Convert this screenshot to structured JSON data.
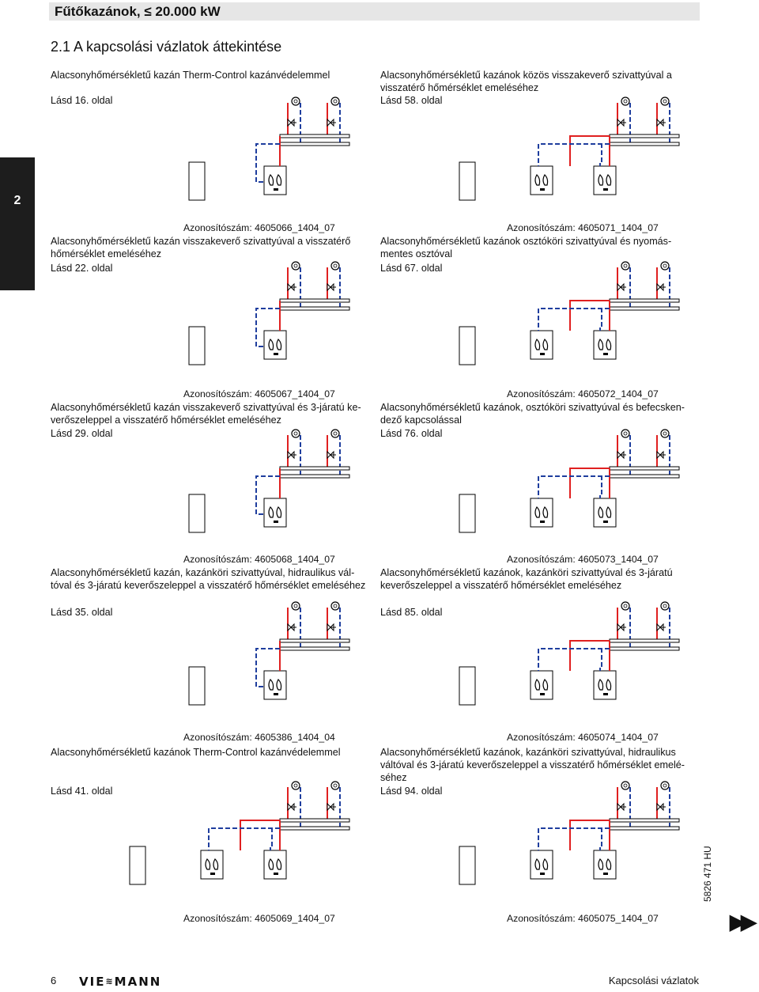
{
  "header": {
    "title": "Fűtőkazánok, ≤ 20.000 kW"
  },
  "section": {
    "title": "2.1 A kapcsolási vázlatok áttekintése"
  },
  "side_tab": {
    "label": "2"
  },
  "panels": [
    {
      "description": "Alacsonyhőmérsékletű kazán Therm-Control kazánvédelemmel",
      "see": "Lásd  16. oldal",
      "id": "Azonosítószám: 4605066_1404_07"
    },
    {
      "description": "Alacsonyhőmérsékletű kazánok közös visszakeverő szivattyúval a visszatérő hőmérséklet emeléséhez",
      "see": "Lásd  58. oldal",
      "id": "Azonosítószám: 4605071_1404_07"
    },
    {
      "description": "Alacsonyhőmérsékletű kazán visszakeverő szivattyúval a visszatérő hőmérséklet emeléséhez",
      "see": "Lásd  22. oldal",
      "id": "Azonosítószám: 4605067_1404_07"
    },
    {
      "description": "Alacsonyhőmérsékletű kazánok osztóköri szivattyúval és nyomás­mentes osztóval",
      "see": "Lásd  67. oldal",
      "id": "Azonosítószám: 4605072_1404_07"
    },
    {
      "description": "Alacsonyhőmérsékletű kazán visszakeverő szivattyúval és 3-járatú ke­verőszeleppel a visszatérő hőmérséklet emeléséhez",
      "see": "Lásd  29. oldal",
      "id": "Azonosítószám: 4605068_1404_07"
    },
    {
      "description": "Alacsonyhőmérsékletű kazánok, osztóköri szivattyúval és befecsken­dező kapcsolással",
      "see": "Lásd  76. oldal",
      "id": "Azonosítószám: 4605073_1404_07"
    },
    {
      "description": "Alacsonyhőmérsékletű kazán, kazánköri szivattyúval, hidraulikus vál­tóval és 3-járatú keverőszeleppel a visszatérő hőmérséklet emelésé­hez",
      "see": "Lásd  35. oldal",
      "id": "Azonosítószám: 4605386_1404_04"
    },
    {
      "description": "Alacsonyhőmérsékletű kazánok, kazánköri szivattyúval és 3-járatú keverőszeleppel a visszatérő hőmérséklet emeléséhez",
      "see": "Lásd  85. oldal",
      "id": "Azonosítószám: 4605074_1404_07"
    },
    {
      "description": "Alacsonyhőmérsékletű kazánok Therm-Control kazánvédelemmel",
      "see": "Lásd  41. oldal",
      "id": "Azonosítószám: 4605069_1404_07"
    },
    {
      "description": "Alacsonyhőmérsékletű kazánok, kazánköri szivattyúval, hidraulikus váltóval és 3-járatú keverőszeleppel a visszatérő hőmérséklet emelé­séhez",
      "see": "Lásd  94. oldal",
      "id": "Azonosítószám: 4605075_1404_07"
    }
  ],
  "footer": {
    "page_number": "6",
    "logo": "VIESMANN",
    "section_name": "Kapcsolási vázlatok",
    "doc_number": "5826 471 HU"
  },
  "colors": {
    "supply": "#e02020",
    "return": "#1f3e9e"
  }
}
